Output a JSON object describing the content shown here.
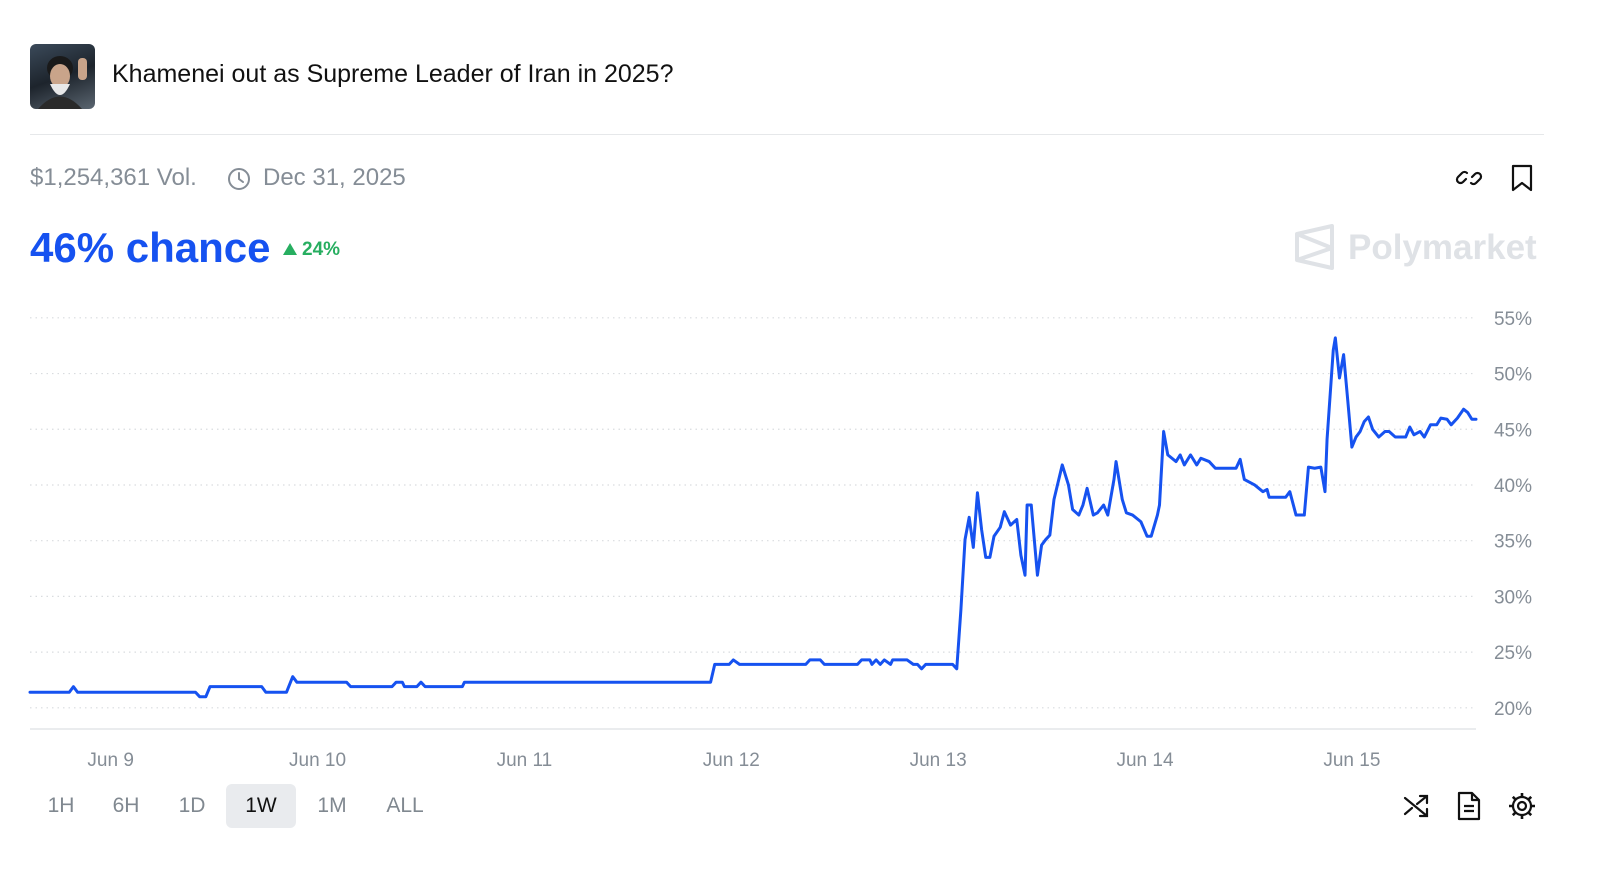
{
  "header": {
    "title": "Khamenei out as Supreme Leader of Iran in 2025?"
  },
  "meta": {
    "volume": "$1,254,361 Vol.",
    "end_date": "Dec 31, 2025"
  },
  "price": {
    "chance": "46% chance",
    "change": "24%"
  },
  "brand": "Polymarket",
  "timeframes": [
    "1H",
    "6H",
    "1D",
    "1W",
    "1M",
    "ALL"
  ],
  "active_timeframe": 3,
  "chart_data": {
    "type": "line",
    "color": "#1652f0",
    "grid": true,
    "xlim": [
      8.61,
      15.6
    ],
    "xticks": [
      {
        "value": 9,
        "label": "Jun 9"
      },
      {
        "value": 10,
        "label": "Jun 10"
      },
      {
        "value": 11,
        "label": "Jun 11"
      },
      {
        "value": 12,
        "label": "Jun 12"
      },
      {
        "value": 13,
        "label": "Jun 13"
      },
      {
        "value": 14,
        "label": "Jun 14"
      },
      {
        "value": 15,
        "label": "Jun 15"
      }
    ],
    "ylim": [
      18.1,
      56.6
    ],
    "yticks": [
      {
        "value": 20,
        "label": "20%"
      },
      {
        "value": 25,
        "label": "25%"
      },
      {
        "value": 30,
        "label": "30%"
      },
      {
        "value": 35,
        "label": "35%"
      },
      {
        "value": 40,
        "label": "40%"
      },
      {
        "value": 45,
        "label": "45%"
      },
      {
        "value": 50,
        "label": "50%"
      },
      {
        "value": 55,
        "label": "55%"
      }
    ],
    "x": [
      8.61,
      8.8,
      8.82,
      8.84,
      9.41,
      9.43,
      9.46,
      9.48,
      9.73,
      9.75,
      9.85,
      9.88,
      9.9,
      10.14,
      10.16,
      10.36,
      10.38,
      10.41,
      10.42,
      10.48,
      10.5,
      10.52,
      10.7,
      10.71,
      11.9,
      11.92,
      11.99,
      12.01,
      12.04,
      12.36,
      12.38,
      12.43,
      12.45,
      12.61,
      12.63,
      12.67,
      12.68,
      12.7,
      12.72,
      12.74,
      12.77,
      12.78,
      12.85,
      12.88,
      12.9,
      12.92,
      12.94,
      13.07,
      13.09,
      13.11,
      13.13,
      13.15,
      13.17,
      13.19,
      13.21,
      13.23,
      13.25,
      13.27,
      13.3,
      13.32,
      13.35,
      13.38,
      13.4,
      13.42,
      13.43,
      13.45,
      13.48,
      13.5,
      13.52,
      13.54,
      13.56,
      13.6,
      13.63,
      13.65,
      13.68,
      13.7,
      13.72,
      13.75,
      13.77,
      13.8,
      13.82,
      13.85,
      13.86,
      13.89,
      13.91,
      13.94,
      13.98,
      14.01,
      14.03,
      14.06,
      14.07,
      14.09,
      14.11,
      14.15,
      14.17,
      14.19,
      14.22,
      14.25,
      14.27,
      14.31,
      14.34,
      14.44,
      14.46,
      14.48,
      14.53,
      14.57,
      14.59,
      14.6,
      14.68,
      14.7,
      14.73,
      14.77,
      14.79,
      14.82,
      14.85,
      14.87,
      14.88,
      14.91,
      14.92,
      14.94,
      14.96,
      14.98,
      15.0,
      15.02,
      15.04,
      15.06,
      15.08,
      15.1,
      15.13,
      15.16,
      15.18,
      15.21,
      15.26,
      15.28,
      15.3,
      15.33,
      15.35,
      15.38,
      15.41,
      15.43,
      15.46,
      15.48,
      15.51,
      15.54,
      15.56,
      15.58,
      15.6
    ],
    "values": [
      21.4,
      21.4,
      21.9,
      21.4,
      21.4,
      21.0,
      21.0,
      21.9,
      21.9,
      21.4,
      21.4,
      22.8,
      22.3,
      22.3,
      21.9,
      21.9,
      22.3,
      22.3,
      21.9,
      21.9,
      22.3,
      21.9,
      21.9,
      22.3,
      22.3,
      23.9,
      23.9,
      24.3,
      23.9,
      23.9,
      24.3,
      24.3,
      23.9,
      23.9,
      24.3,
      24.3,
      23.9,
      24.3,
      23.9,
      24.3,
      23.9,
      24.3,
      24.3,
      23.9,
      23.9,
      23.5,
      23.9,
      23.9,
      23.5,
      28.8,
      35.1,
      37.1,
      34.4,
      39.3,
      36.0,
      33.5,
      33.5,
      35.4,
      36.2,
      37.6,
      36.4,
      36.9,
      33.7,
      31.9,
      38.2,
      38.2,
      31.9,
      34.6,
      35.1,
      35.5,
      38.7,
      41.8,
      40.0,
      37.8,
      37.3,
      38.2,
      39.7,
      37.3,
      37.5,
      38.2,
      37.3,
      40.5,
      42.1,
      38.7,
      37.5,
      37.3,
      36.7,
      35.4,
      35.4,
      37.3,
      38.2,
      44.8,
      42.7,
      42.1,
      42.7,
      41.8,
      42.7,
      41.8,
      42.4,
      42.1,
      41.5,
      41.5,
      42.3,
      40.5,
      40.0,
      39.4,
      39.6,
      38.9,
      38.9,
      39.4,
      37.3,
      37.3,
      41.6,
      41.5,
      41.6,
      39.4,
      44.1,
      52.1,
      53.2,
      49.6,
      51.7,
      47.6,
      43.4,
      44.3,
      44.8,
      45.7,
      46.1,
      45.0,
      44.3,
      44.8,
      44.8,
      44.3,
      44.3,
      45.2,
      44.5,
      44.8,
      44.3,
      45.4,
      45.4,
      46.0,
      45.9,
      45.4,
      46.0,
      46.8,
      46.5,
      45.9,
      45.9
    ]
  }
}
